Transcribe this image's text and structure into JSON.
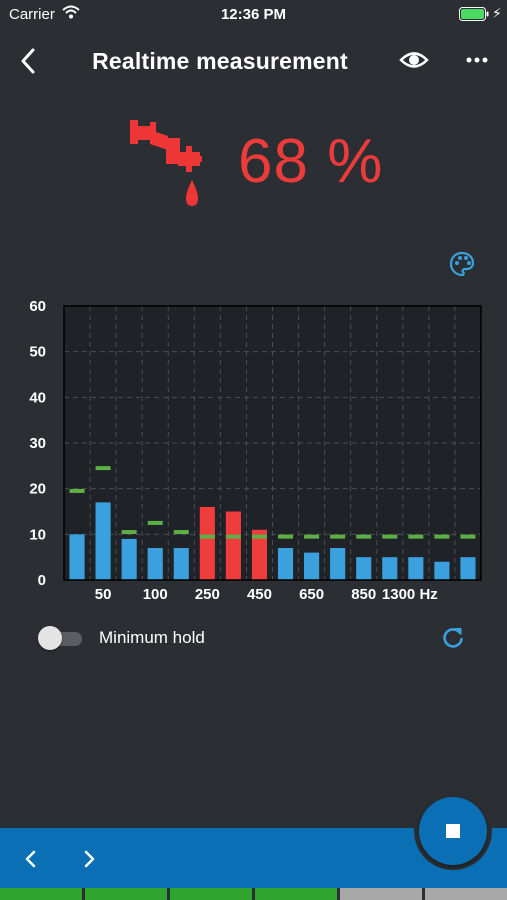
{
  "status_bar": {
    "carrier": "Carrier",
    "time": "12:36 PM"
  },
  "nav": {
    "title": "Realtime measurement"
  },
  "reading": {
    "value": "68 %",
    "color": "#ec3b3b"
  },
  "controls": {
    "minimum_hold_label": "Minimum hold",
    "minimum_hold_on": false
  },
  "icons": {
    "back": "chevron-left-icon",
    "eye": "eye-icon",
    "more": "more-horizontal-icon",
    "leak": "dripping-pipe-icon",
    "palette": "palette-icon",
    "refresh": "refresh-icon",
    "prev": "chevron-left-icon",
    "next": "chevron-right-icon",
    "stop": "stop-icon"
  },
  "colors": {
    "background": "#2b2e33",
    "accent": "#0a6fb5",
    "bar_normal": "#3aa1de",
    "bar_alert": "#ef3d3d",
    "threshold": "#5cb046",
    "progress_on": "#2fa52f",
    "progress_off": "#a8a8a8"
  },
  "progress_segments": [
    true,
    true,
    true,
    true,
    false,
    false
  ],
  "chart_data": {
    "type": "bar",
    "ylim": [
      0,
      60
    ],
    "yticks": [
      0,
      10,
      20,
      30,
      40,
      50,
      60
    ],
    "xtick_labels": [
      "50",
      "100",
      "250",
      "450",
      "650",
      "850",
      "1300 Hz"
    ],
    "grid": true,
    "values": [
      10,
      17,
      9,
      7,
      7,
      16,
      15,
      11,
      7,
      6,
      7,
      5,
      5,
      5,
      4,
      5
    ],
    "thresholds": [
      19.5,
      24.5,
      10.5,
      12.5,
      10.5,
      9.5,
      9.5,
      9.5,
      9.5,
      9.5,
      9.5,
      9.5,
      9.5,
      9.5,
      9.5,
      9.5
    ],
    "alert": [
      false,
      false,
      false,
      false,
      false,
      true,
      true,
      true,
      false,
      false,
      false,
      false,
      false,
      false,
      false,
      false
    ]
  }
}
